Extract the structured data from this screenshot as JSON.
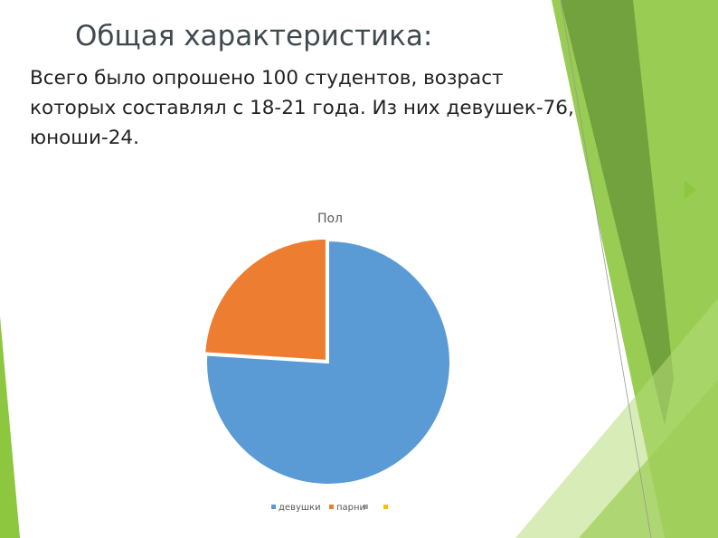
{
  "slide": {
    "title": "Общая характеристика:",
    "body_lines": [
      "Всего было опрошено 100 студентов, возраст",
      "которых составлял с 18-21 года. Из них девушек-76,",
      "юноши-24."
    ]
  },
  "chart_data": {
    "type": "pie",
    "title": "Пол",
    "categories": [
      "девушки",
      "парни"
    ],
    "values": [
      76,
      24
    ],
    "colors": [
      "#5b9bd5",
      "#ed7d31"
    ],
    "legend": "bottom"
  }
}
